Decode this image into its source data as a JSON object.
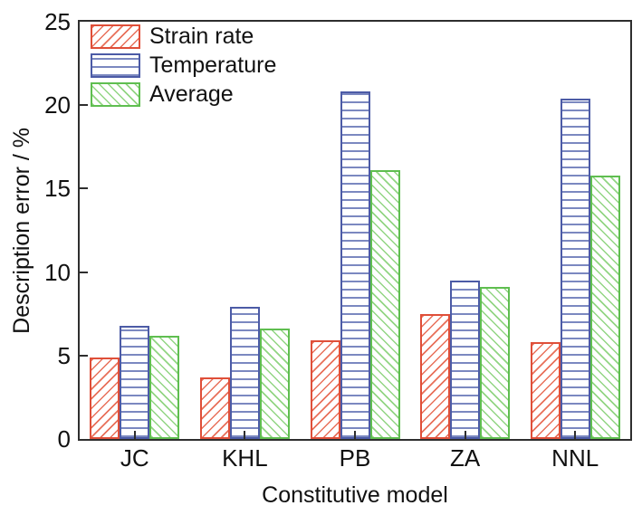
{
  "figure": {
    "background": "#ffffff",
    "axis_color": "#2e2e2e",
    "text_color": "#111111"
  },
  "chart_data": {
    "type": "bar",
    "title": "",
    "xlabel": "Constitutive model",
    "ylabel": "Description error / %",
    "categories": [
      "JC",
      "KHL",
      "PB",
      "ZA",
      "NNL"
    ],
    "series": [
      {
        "name": "Strain rate",
        "color": "#DF4F39",
        "hatch": "diagonal-forward",
        "values": [
          4.9,
          3.7,
          5.9,
          7.5,
          5.8
        ]
      },
      {
        "name": "Temperature",
        "color": "#4C5BA6",
        "hatch": "horizontal",
        "values": [
          6.8,
          7.9,
          20.8,
          9.5,
          20.4
        ]
      },
      {
        "name": "Average",
        "color": "#5FBE50",
        "hatch": "diagonal-back",
        "values": [
          6.2,
          6.6,
          16.1,
          9.1,
          15.8
        ]
      }
    ],
    "ylim": [
      0,
      25
    ],
    "yticks": [
      0,
      5,
      10,
      15,
      20,
      25
    ],
    "grid": false,
    "legend_position": "upper-left"
  }
}
